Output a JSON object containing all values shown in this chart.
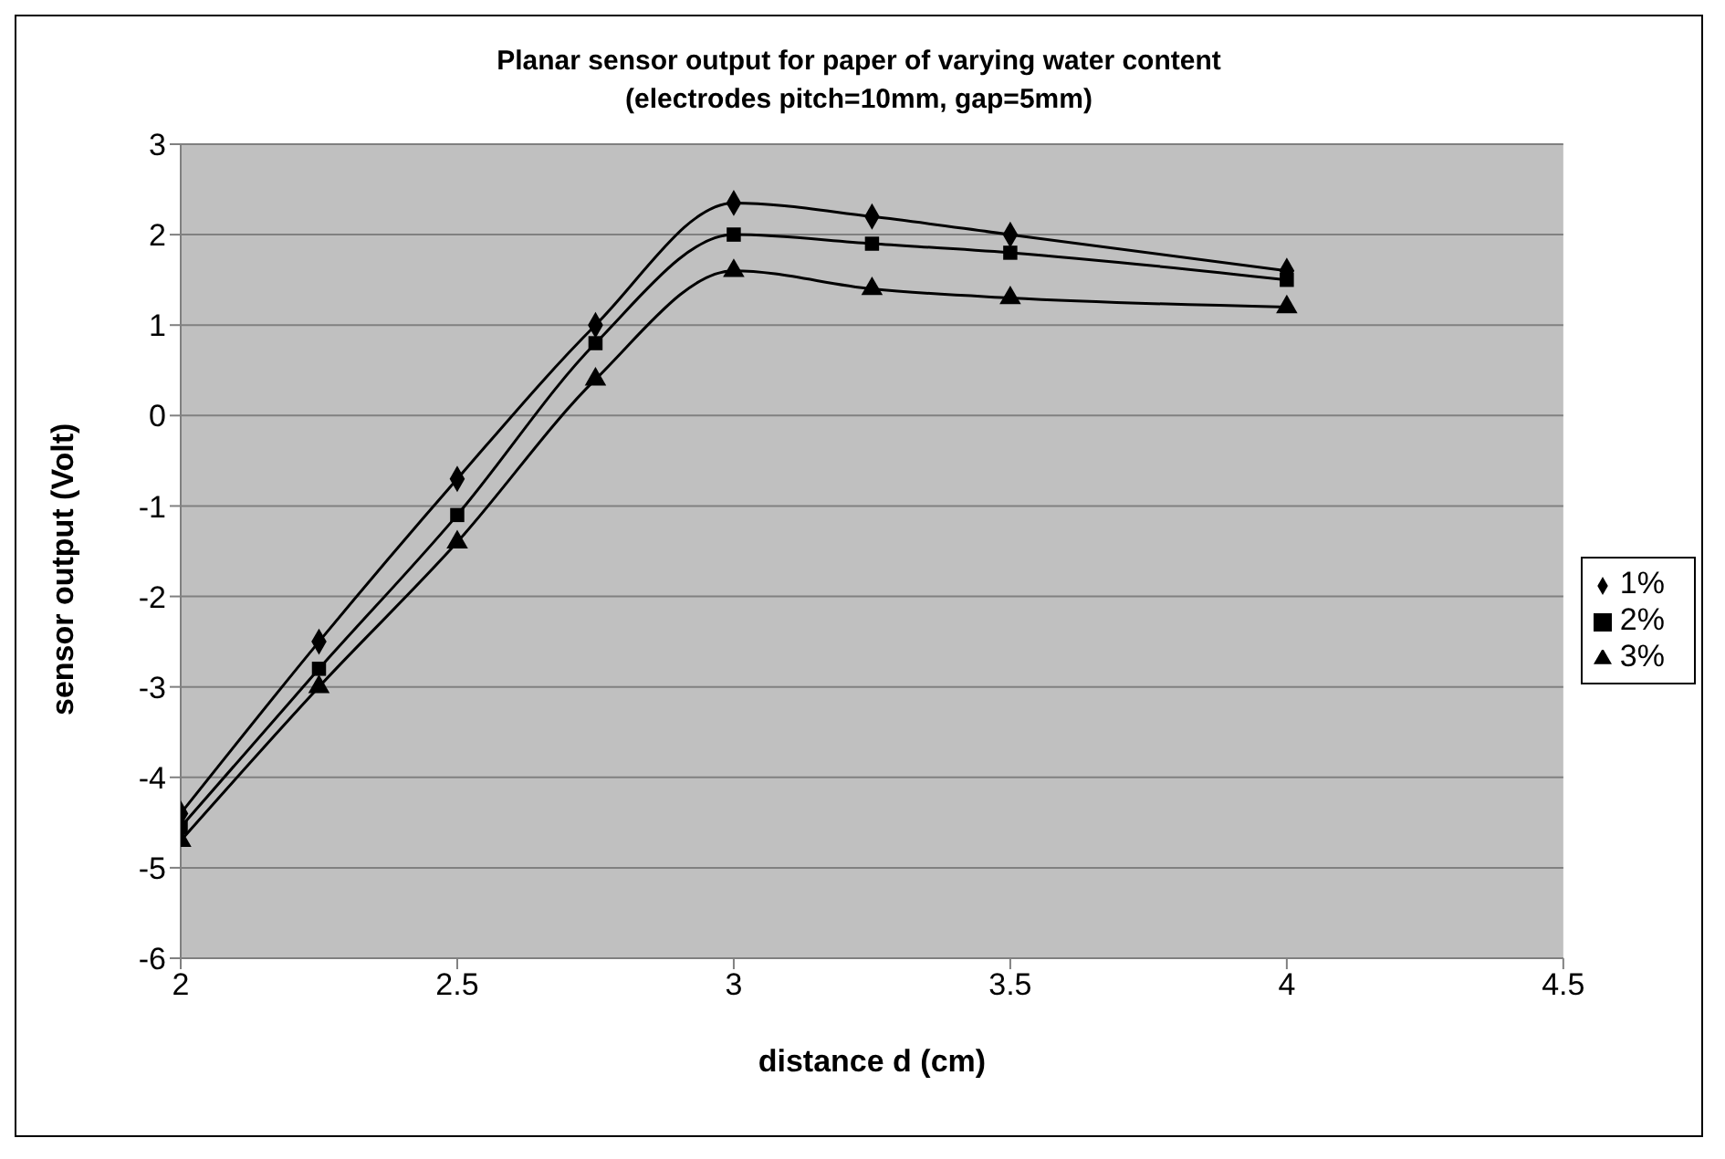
{
  "chart_data": {
    "type": "line",
    "title": "Planar sensor output for paper of varying water content",
    "subtitle": "(electrodes pitch=10mm, gap=5mm)",
    "xlabel": "distance d (cm)",
    "ylabel": "sensor output (Volt)",
    "x": [
      2,
      2.25,
      2.5,
      2.75,
      3,
      3.25,
      3.5,
      4
    ],
    "series": [
      {
        "name": "1%",
        "color": "#000000",
        "marker": "diamond",
        "values": [
          -4.4,
          -2.5,
          -0.7,
          1.0,
          2.35,
          2.2,
          2.0,
          1.6
        ]
      },
      {
        "name": "2%",
        "color": "#000000",
        "marker": "square",
        "values": [
          -4.55,
          -2.8,
          -1.1,
          0.8,
          2.0,
          1.9,
          1.8,
          1.5
        ]
      },
      {
        "name": "3%",
        "color": "#000000",
        "marker": "triangle",
        "values": [
          -4.7,
          -3.0,
          -1.4,
          0.4,
          1.6,
          1.4,
          1.3,
          1.2
        ]
      }
    ],
    "xlim": [
      2,
      4.5
    ],
    "xticks": [
      2,
      2.5,
      3,
      3.5,
      4,
      4.5
    ],
    "ylim": [
      -6,
      3
    ],
    "yticks": [
      -6,
      -5,
      -4,
      -3,
      -2,
      -1,
      0,
      1,
      2,
      3
    ],
    "grid": "y",
    "legend": "right",
    "line_style": "solid"
  }
}
